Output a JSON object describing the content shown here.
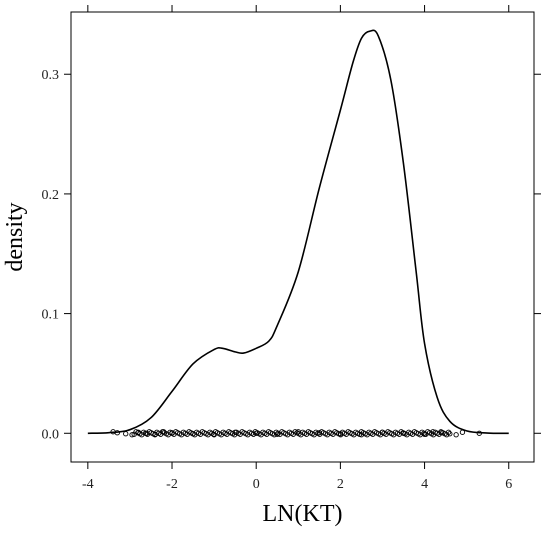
{
  "chart_data": {
    "type": "line",
    "xlabel": "LN(KT)",
    "ylabel": "density",
    "xlim": [
      -4.4,
      6.6
    ],
    "ylim": [
      -0.024,
      0.352
    ],
    "xticks": [
      -4,
      -2,
      0,
      2,
      4,
      6
    ],
    "yticks": [
      0.0,
      0.1,
      0.2,
      0.3
    ],
    "xtick_labels": [
      "-4",
      "-2",
      "0",
      "2",
      "4",
      "6"
    ],
    "ytick_labels": [
      "0.0",
      "0.1",
      "0.2",
      "0.3"
    ],
    "grid": false,
    "legend": "none",
    "series": [
      {
        "x": [
          -4.0,
          -3.5,
          -3.0,
          -2.5,
          -2.0,
          -1.5,
          -1.0,
          -0.8,
          -0.5,
          -0.3,
          0.0,
          0.3,
          0.5,
          1.0,
          1.5,
          2.0,
          2.3,
          2.5,
          2.7,
          2.9,
          3.2,
          3.5,
          3.8,
          4.0,
          4.3,
          4.6,
          5.0,
          5.5,
          6.0
        ],
        "y": [
          0.0,
          0.0005,
          0.003,
          0.013,
          0.035,
          0.058,
          0.07,
          0.071,
          0.068,
          0.067,
          0.071,
          0.077,
          0.09,
          0.135,
          0.205,
          0.27,
          0.31,
          0.33,
          0.336,
          0.332,
          0.295,
          0.225,
          0.135,
          0.075,
          0.03,
          0.01,
          0.002,
          0.0002,
          0.0
        ]
      }
    ],
    "rug": {
      "y": 0.0,
      "range": [
        -3.4,
        5.3
      ],
      "marker": "open-circle",
      "x_sample": [
        -3.4,
        -3.3,
        -3.1,
        -2.95,
        -2.8,
        -2.6,
        -2.4,
        -2.2,
        -2.0,
        -1.5,
        -1.0,
        -0.5,
        0.0,
        0.5,
        1.0,
        1.5,
        2.0,
        2.5,
        3.0,
        3.5,
        4.0,
        4.2,
        4.4,
        4.6,
        4.75,
        4.9,
        5.3
      ]
    }
  }
}
